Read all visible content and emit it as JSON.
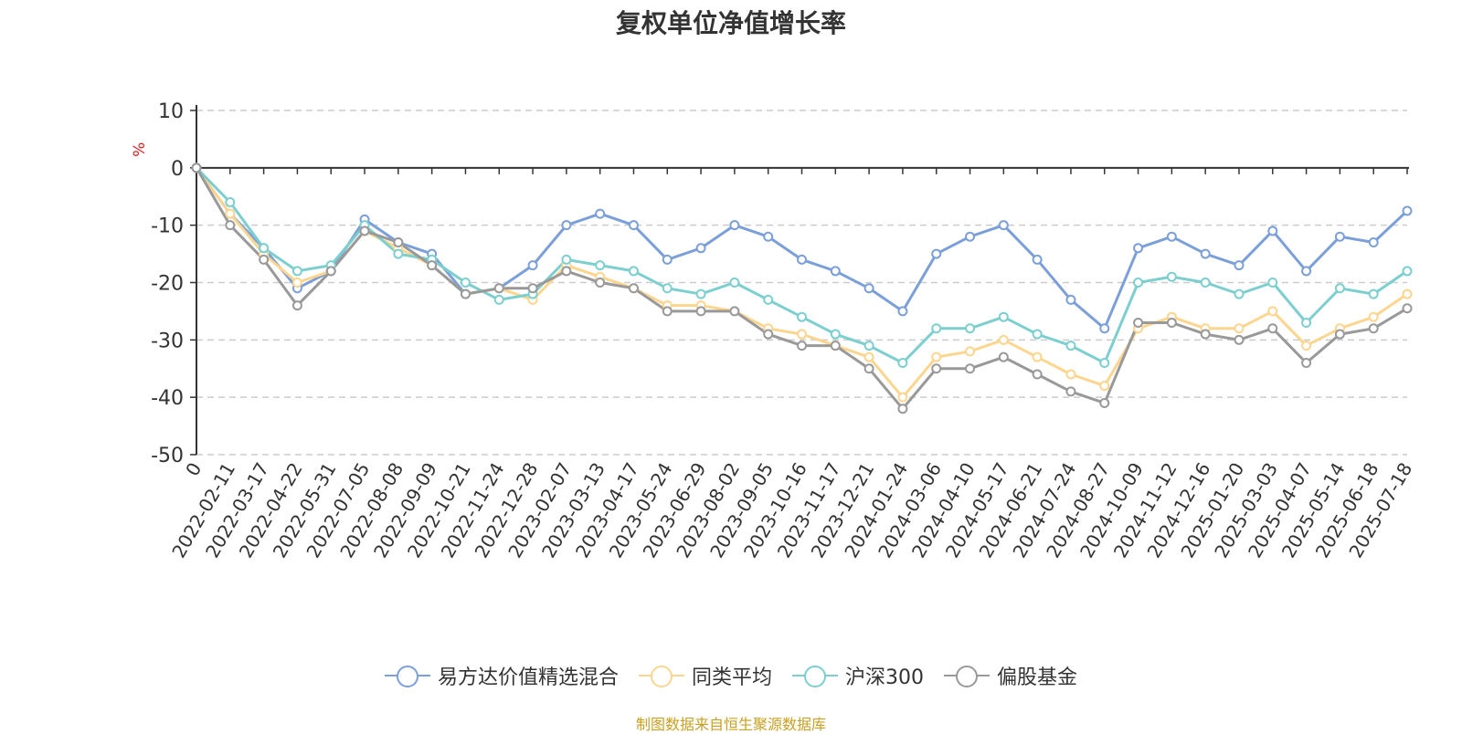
{
  "chart_data": {
    "type": "line",
    "title": "复权单位净值增长率",
    "ylabel": "%",
    "ylim": [
      -50,
      10
    ],
    "yticks": [
      10,
      0,
      -10,
      -20,
      -30,
      -40,
      -50
    ],
    "grid": true,
    "legend_position": "bottom",
    "x": [
      "0",
      "2022-02-11",
      "2022-03-17",
      "2022-04-22",
      "2022-05-31",
      "2022-07-05",
      "2022-08-08",
      "2022-09-09",
      "2022-10-21",
      "2022-11-24",
      "2022-12-28",
      "2023-02-07",
      "2023-03-13",
      "2023-04-17",
      "2023-05-24",
      "2023-06-29",
      "2023-08-02",
      "2023-09-05",
      "2023-10-16",
      "2023-11-17",
      "2023-12-21",
      "2024-01-24",
      "2024-03-06",
      "2024-04-10",
      "2024-05-17",
      "2024-06-21",
      "2024-07-24",
      "2024-08-27",
      "2024-10-09",
      "2024-11-12",
      "2024-12-16",
      "2025-01-20",
      "2025-03-03",
      "2025-04-07",
      "2025-05-14",
      "2025-06-18",
      "2025-07-18"
    ],
    "series": [
      {
        "name": "易方达价值精选混合",
        "color": "#7b9fd8",
        "values": [
          0,
          -8,
          -14,
          -21,
          -18,
          -9,
          -13,
          -15,
          -22,
          -21,
          -17,
          -10,
          -8,
          -10,
          -16,
          -14,
          -10,
          -12,
          -16,
          -18,
          -21,
          -25,
          -15,
          -12,
          -10,
          -16,
          -23,
          -28,
          -14,
          -12,
          -15,
          -17,
          -11,
          -18,
          -12,
          -13,
          -7.5
        ]
      },
      {
        "name": "同类平均",
        "color": "#fcd58f",
        "values": [
          0,
          -8,
          -15,
          -20,
          -18,
          -11,
          -14,
          -17,
          -22,
          -21,
          -23,
          -17,
          -19,
          -21,
          -24,
          -24,
          -25,
          -28,
          -29,
          -31,
          -33,
          -40,
          -33,
          -32,
          -30,
          -33,
          -36,
          -38,
          -28,
          -26,
          -28,
          -28,
          -25,
          -31,
          -28,
          -26,
          -22
        ]
      },
      {
        "name": "沪深300",
        "color": "#7dcfcf",
        "values": [
          0,
          -6,
          -14,
          -18,
          -17,
          -10,
          -15,
          -16,
          -20,
          -23,
          -22,
          -16,
          -17,
          -18,
          -21,
          -22,
          -20,
          -23,
          -26,
          -29,
          -31,
          -34,
          -28,
          -28,
          -26,
          -29,
          -31,
          -34,
          -20,
          -19,
          -20,
          -22,
          -20,
          -27,
          -21,
          -22,
          -18
        ]
      },
      {
        "name": "偏股基金",
        "color": "#999999",
        "values": [
          0,
          -10,
          -16,
          -24,
          -18,
          -11,
          -13,
          -17,
          -22,
          -21,
          -21,
          -18,
          -20,
          -21,
          -25,
          -25,
          -25,
          -29,
          -31,
          -31,
          -35,
          -42,
          -35,
          -35,
          -33,
          -36,
          -39,
          -41,
          -27,
          -27,
          -29,
          -30,
          -28,
          -34,
          -29,
          -28,
          -24.5
        ]
      }
    ]
  },
  "source_note": "制图数据来自恒生聚源数据库"
}
